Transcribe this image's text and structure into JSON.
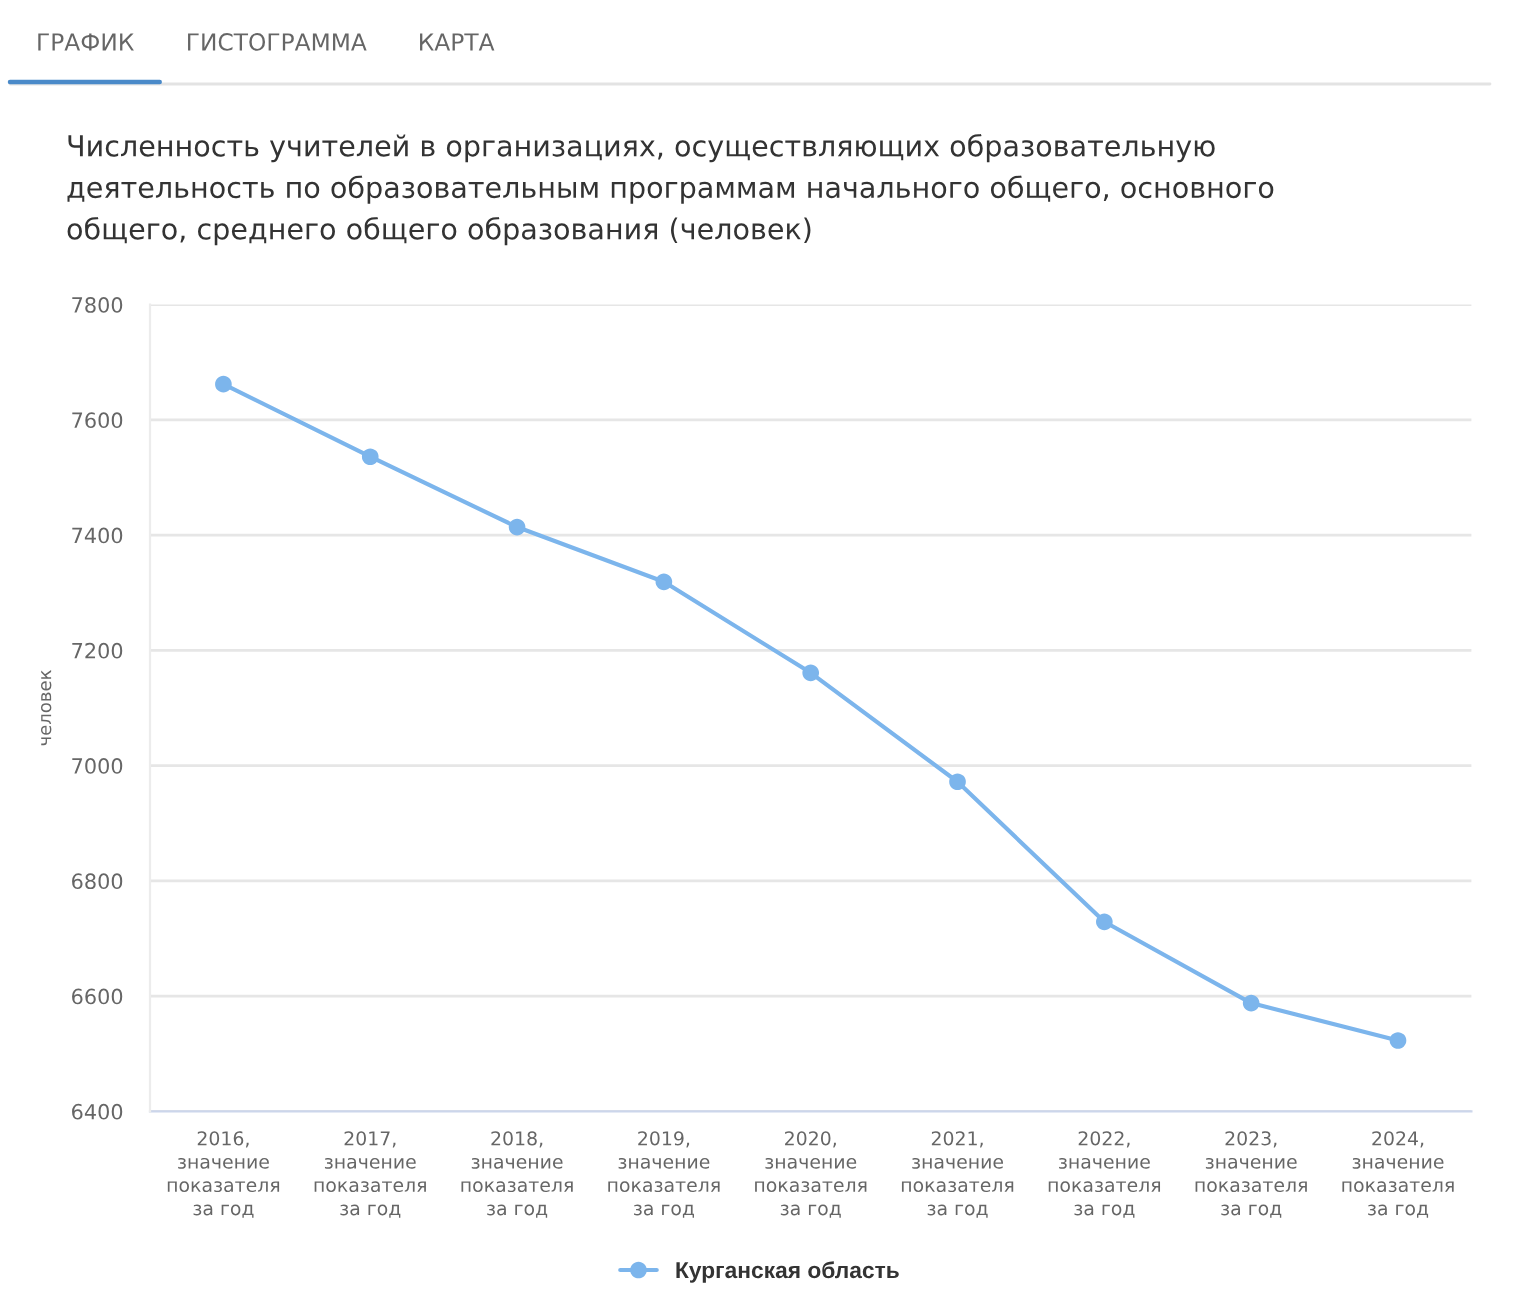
{
  "chart_data": {
    "type": "line",
    "title": "Численность учителей в организациях, осуществляющих образовательную деятельность по образовательным программам начального общего, основного общего, среднего общего образования (человек)",
    "ylabel": "человек",
    "categories": [
      "2016, значение показателя за год",
      "2017, значение показателя за год",
      "2018, значение показателя за год",
      "2019, значение показателя за год",
      "2020, значение показателя за год",
      "2021, значение показателя за год",
      "2022, значение показателя за год",
      "2023, значение показателя за год",
      "2024, значение показателя за год"
    ],
    "series": [
      {
        "name": "Курганская область",
        "color": "#7cb5ec",
        "values": [
          7662,
          7536,
          7414,
          7319,
          7161,
          6972,
          6729,
          6588,
          6523
        ]
      }
    ],
    "ylim": [
      6400,
      7800
    ],
    "yticks": [
      6400,
      6600,
      6800,
      7000,
      7200,
      7400,
      7600,
      7800
    ],
    "grid": "y",
    "legend": "bottom",
    "marker": "circle",
    "line_style": "solid",
    "annotations": [
      "ГРАФИК",
      "ГИСТОГРАММА",
      "КАРТА"
    ]
  }
}
